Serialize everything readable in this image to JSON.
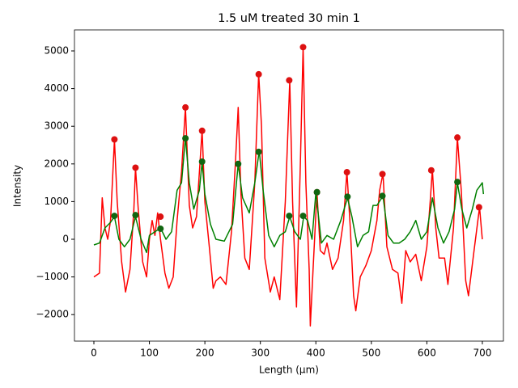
{
  "chart_data": {
    "type": "line",
    "title": "1.5 uM treated 30 min 1",
    "x_label": "Length (μm)",
    "y_label": "Intensity",
    "xlim": [
      -35,
      738
    ],
    "ylim": [
      -2704,
      5558
    ],
    "xticks": [
      0,
      100,
      200,
      300,
      400,
      500,
      600,
      700
    ],
    "yticks": [
      {
        "value": -2000,
        "label": "−2000"
      },
      {
        "value": -1000,
        "label": "−1000"
      },
      0,
      1000,
      2000,
      3000,
      4000,
      5000
    ],
    "grid": false,
    "series": [
      {
        "color": "#ff0000",
        "style": "line",
        "x": [
          0,
          10,
          15,
          20,
          25,
          30,
          37,
          42,
          50,
          57,
          65,
          72,
          75,
          80,
          88,
          95,
          100,
          105,
          110,
          115,
          120,
          128,
          135,
          143,
          150,
          158,
          165,
          172,
          178,
          185,
          195,
          200,
          208,
          215,
          220,
          228,
          238,
          248,
          255,
          260,
          265,
          272,
          280,
          290,
          297,
          302,
          308,
          318,
          325,
          335,
          345,
          353,
          358,
          365,
          372,
          377,
          382,
          388,
          390,
          395,
          402,
          408,
          415,
          420,
          430,
          440,
          450,
          456,
          462,
          468,
          472,
          480,
          490,
          500,
          510,
          515,
          521,
          528,
          538,
          548,
          555,
          562,
          570,
          580,
          590,
          600,
          606,
          610,
          616,
          622,
          632,
          638,
          648,
          655,
          662,
          670,
          675,
          685,
          695,
          700
        ],
        "values": [
          -1000,
          -900,
          1100,
          300,
          0,
          500,
          2650,
          1000,
          -600,
          -1400,
          -800,
          800,
          1900,
          800,
          -600,
          -1000,
          0,
          500,
          100,
          700,
          0,
          -900,
          -1300,
          -1000,
          500,
          1800,
          3500,
          900,
          300,
          600,
          2900,
          1000,
          -200,
          -1300,
          -1100,
          -1000,
          -1200,
          200,
          2000,
          3500,
          1200,
          -500,
          -800,
          1500,
          4400,
          3000,
          -500,
          -1400,
          -1000,
          -1600,
          1000,
          4200,
          1000,
          -1800,
          2000,
          5100,
          1500,
          -800,
          -2300,
          -800,
          1250,
          -300,
          -400,
          -100,
          -800,
          -500,
          500,
          1800,
          300,
          -1500,
          -1900,
          -1000,
          -700,
          -300,
          500,
          1300,
          1750,
          -200,
          -800,
          -900,
          -1700,
          -300,
          -600,
          -400,
          -1100,
          -200,
          1000,
          1850,
          300,
          -500,
          -500,
          -1200,
          300,
          2700,
          1300,
          -1100,
          -1500,
          -300,
          850,
          0
        ]
      },
      {
        "color": "#008000",
        "style": "line",
        "x": [
          0,
          10,
          20,
          30,
          37,
          45,
          55,
          65,
          75,
          85,
          95,
          100,
          110,
          120,
          130,
          140,
          150,
          158,
          165,
          172,
          180,
          190,
          195,
          200,
          210,
          220,
          235,
          250,
          260,
          268,
          280,
          290,
          298,
          305,
          315,
          325,
          335,
          345,
          353,
          362,
          372,
          378,
          385,
          393,
          400,
          410,
          420,
          432,
          445,
          457,
          465,
          475,
          485,
          495,
          503,
          510,
          521,
          530,
          540,
          550,
          560,
          570,
          580,
          590,
          600,
          610,
          620,
          630,
          640,
          650,
          655,
          663,
          672,
          682,
          690,
          700,
          702
        ],
        "values": [
          -150,
          -100,
          300,
          450,
          600,
          0,
          -200,
          0,
          600,
          0,
          -350,
          100,
          200,
          300,
          0,
          200,
          1300,
          1500,
          2700,
          1500,
          800,
          1300,
          2050,
          1200,
          400,
          0,
          -50,
          400,
          2000,
          1100,
          700,
          1500,
          2350,
          1300,
          100,
          -200,
          100,
          200,
          600,
          200,
          0,
          600,
          500,
          0,
          1250,
          -100,
          100,
          0,
          500,
          1100,
          600,
          -200,
          100,
          200,
          900,
          900,
          1150,
          100,
          -100,
          -100,
          0,
          200,
          500,
          0,
          200,
          1100,
          300,
          -100,
          200,
          800,
          1500,
          800,
          300,
          800,
          1300,
          1500,
          1200
        ]
      },
      {
        "color": "#dd1111",
        "style": "markers",
        "x": [
          37,
          75,
          120,
          165,
          195,
          297,
          352,
          377,
          402,
          456,
          520,
          608,
          655,
          694
        ],
        "values": [
          2650,
          1900,
          600,
          3500,
          2880,
          4380,
          4220,
          5100,
          1250,
          1780,
          1730,
          1830,
          2700,
          850
        ]
      },
      {
        "color": "#116611",
        "style": "markers",
        "x": [
          37,
          75,
          120,
          165,
          195,
          260,
          297,
          352,
          377,
          402,
          457,
          520,
          655
        ],
        "values": [
          620,
          640,
          280,
          2680,
          2060,
          2000,
          2320,
          620,
          620,
          1250,
          1130,
          1150,
          1520
        ]
      }
    ]
  }
}
